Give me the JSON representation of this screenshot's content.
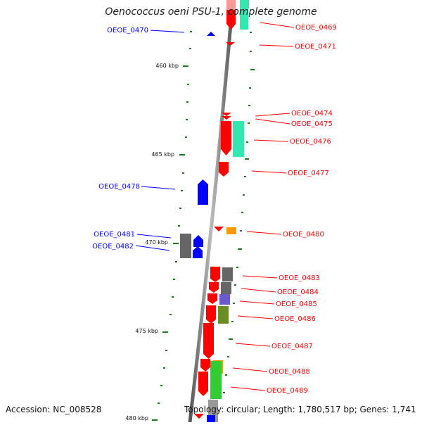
{
  "title": "Oenococcus oeni PSU-1, complete genome",
  "footer": {
    "accession": "Accession: NC_008528",
    "topology": "Topology: circular; Length: 1,780,517 bp; Genes: 1,741"
  },
  "scale_labels": [
    "460 kbp",
    "465 kbp",
    "470 kbp",
    "475 kbp",
    "480 kbp"
  ],
  "colors": {
    "red": "#ff0000",
    "blue": "#0000ff",
    "gray": "#666666",
    "teal": "#33e8b0",
    "orange": "#ff9900",
    "green": "#33cc33",
    "olive": "#6b8e23",
    "purple": "#6a5acd",
    "tick": "#1a7a1a",
    "backbone": "#888888"
  },
  "gene_labels": [
    {
      "text": "OEOE_0469",
      "strand": "forward"
    },
    {
      "text": "OEOE_0470",
      "strand": "reverse"
    },
    {
      "text": "OEOE_0471",
      "strand": "forward"
    },
    {
      "text": "OEOE_0474",
      "strand": "forward"
    },
    {
      "text": "OEOE_0475",
      "strand": "forward"
    },
    {
      "text": "OEOE_0476",
      "strand": "forward"
    },
    {
      "text": "OEOE_0477",
      "strand": "forward"
    },
    {
      "text": "OEOE_0478",
      "strand": "reverse"
    },
    {
      "text": "OEOE_0480",
      "strand": "forward"
    },
    {
      "text": "OEOE_0481",
      "strand": "reverse"
    },
    {
      "text": "OEOE_0482",
      "strand": "reverse"
    },
    {
      "text": "OEOE_0483",
      "strand": "forward"
    },
    {
      "text": "OEOE_0484",
      "strand": "forward"
    },
    {
      "text": "OEOE_0485",
      "strand": "forward"
    },
    {
      "text": "OEOE_0486",
      "strand": "forward"
    },
    {
      "text": "OEOE_0487",
      "strand": "forward"
    },
    {
      "text": "OEOE_0488",
      "strand": "forward"
    },
    {
      "text": "OEOE_0489",
      "strand": "forward"
    }
  ]
}
